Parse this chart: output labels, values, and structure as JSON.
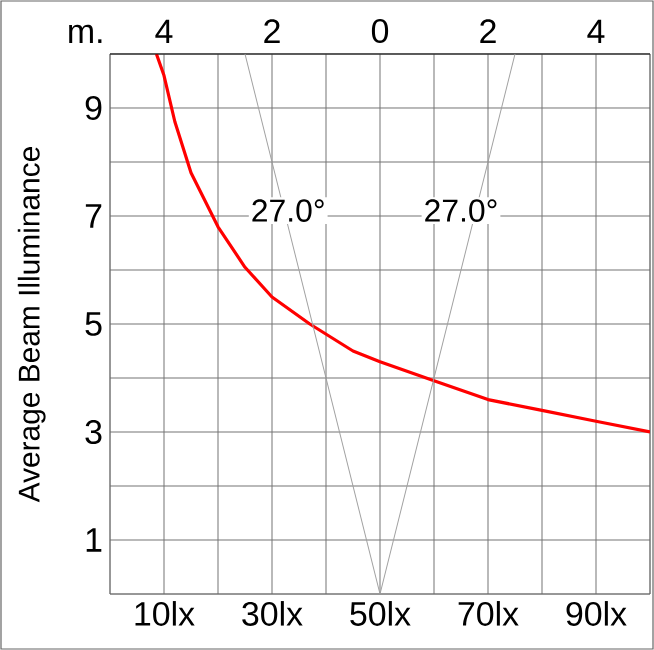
{
  "chart_data": {
    "type": "line",
    "ylabel": "Average Beam Illuminance",
    "x2label": "m.",
    "xlim": [
      0,
      100
    ],
    "ylim": [
      0,
      10
    ],
    "x2lim": [
      -5,
      5
    ],
    "xticks": [
      {
        "value": 0,
        "label": null
      },
      {
        "value": 10,
        "label": "10lx"
      },
      {
        "value": 20,
        "label": null
      },
      {
        "value": 30,
        "label": "30lx"
      },
      {
        "value": 40,
        "label": null
      },
      {
        "value": 50,
        "label": "50lx"
      },
      {
        "value": 60,
        "label": null
      },
      {
        "value": 70,
        "label": "70lx"
      },
      {
        "value": 80,
        "label": null
      },
      {
        "value": 90,
        "label": "90lx"
      },
      {
        "value": 100,
        "label": null
      }
    ],
    "x2ticks": [
      {
        "value": -4,
        "label": "4"
      },
      {
        "value": -2,
        "label": "2"
      },
      0,
      2,
      4
    ],
    "yticks": [
      {
        "value": 0,
        "label": null
      },
      1,
      {
        "value": 2,
        "label": null
      },
      3,
      {
        "value": 4,
        "label": null
      },
      5,
      {
        "value": 6,
        "label": null
      },
      7,
      {
        "value": 8,
        "label": null
      },
      9,
      {
        "value": 10,
        "label": null
      }
    ],
    "grid": true,
    "series": [
      {
        "color": "#ff0000",
        "x": [
          8.6,
          10,
          12,
          15,
          20,
          25,
          30,
          37,
          45,
          50,
          60,
          70,
          80,
          90,
          100
        ],
        "values": [
          10,
          9.6,
          8.75,
          7.8,
          6.8,
          6.05,
          5.5,
          5.0,
          4.5,
          4.3,
          3.95,
          3.6,
          3.4,
          3.2,
          3.0
        ]
      },
      {
        "color": "#a0a0a0",
        "axis": "x2",
        "x": [
          -2.5,
          0,
          2.5
        ],
        "values": [
          10,
          0,
          10
        ]
      }
    ],
    "annotations": [
      "27.0°",
      "27.0°"
    ]
  }
}
